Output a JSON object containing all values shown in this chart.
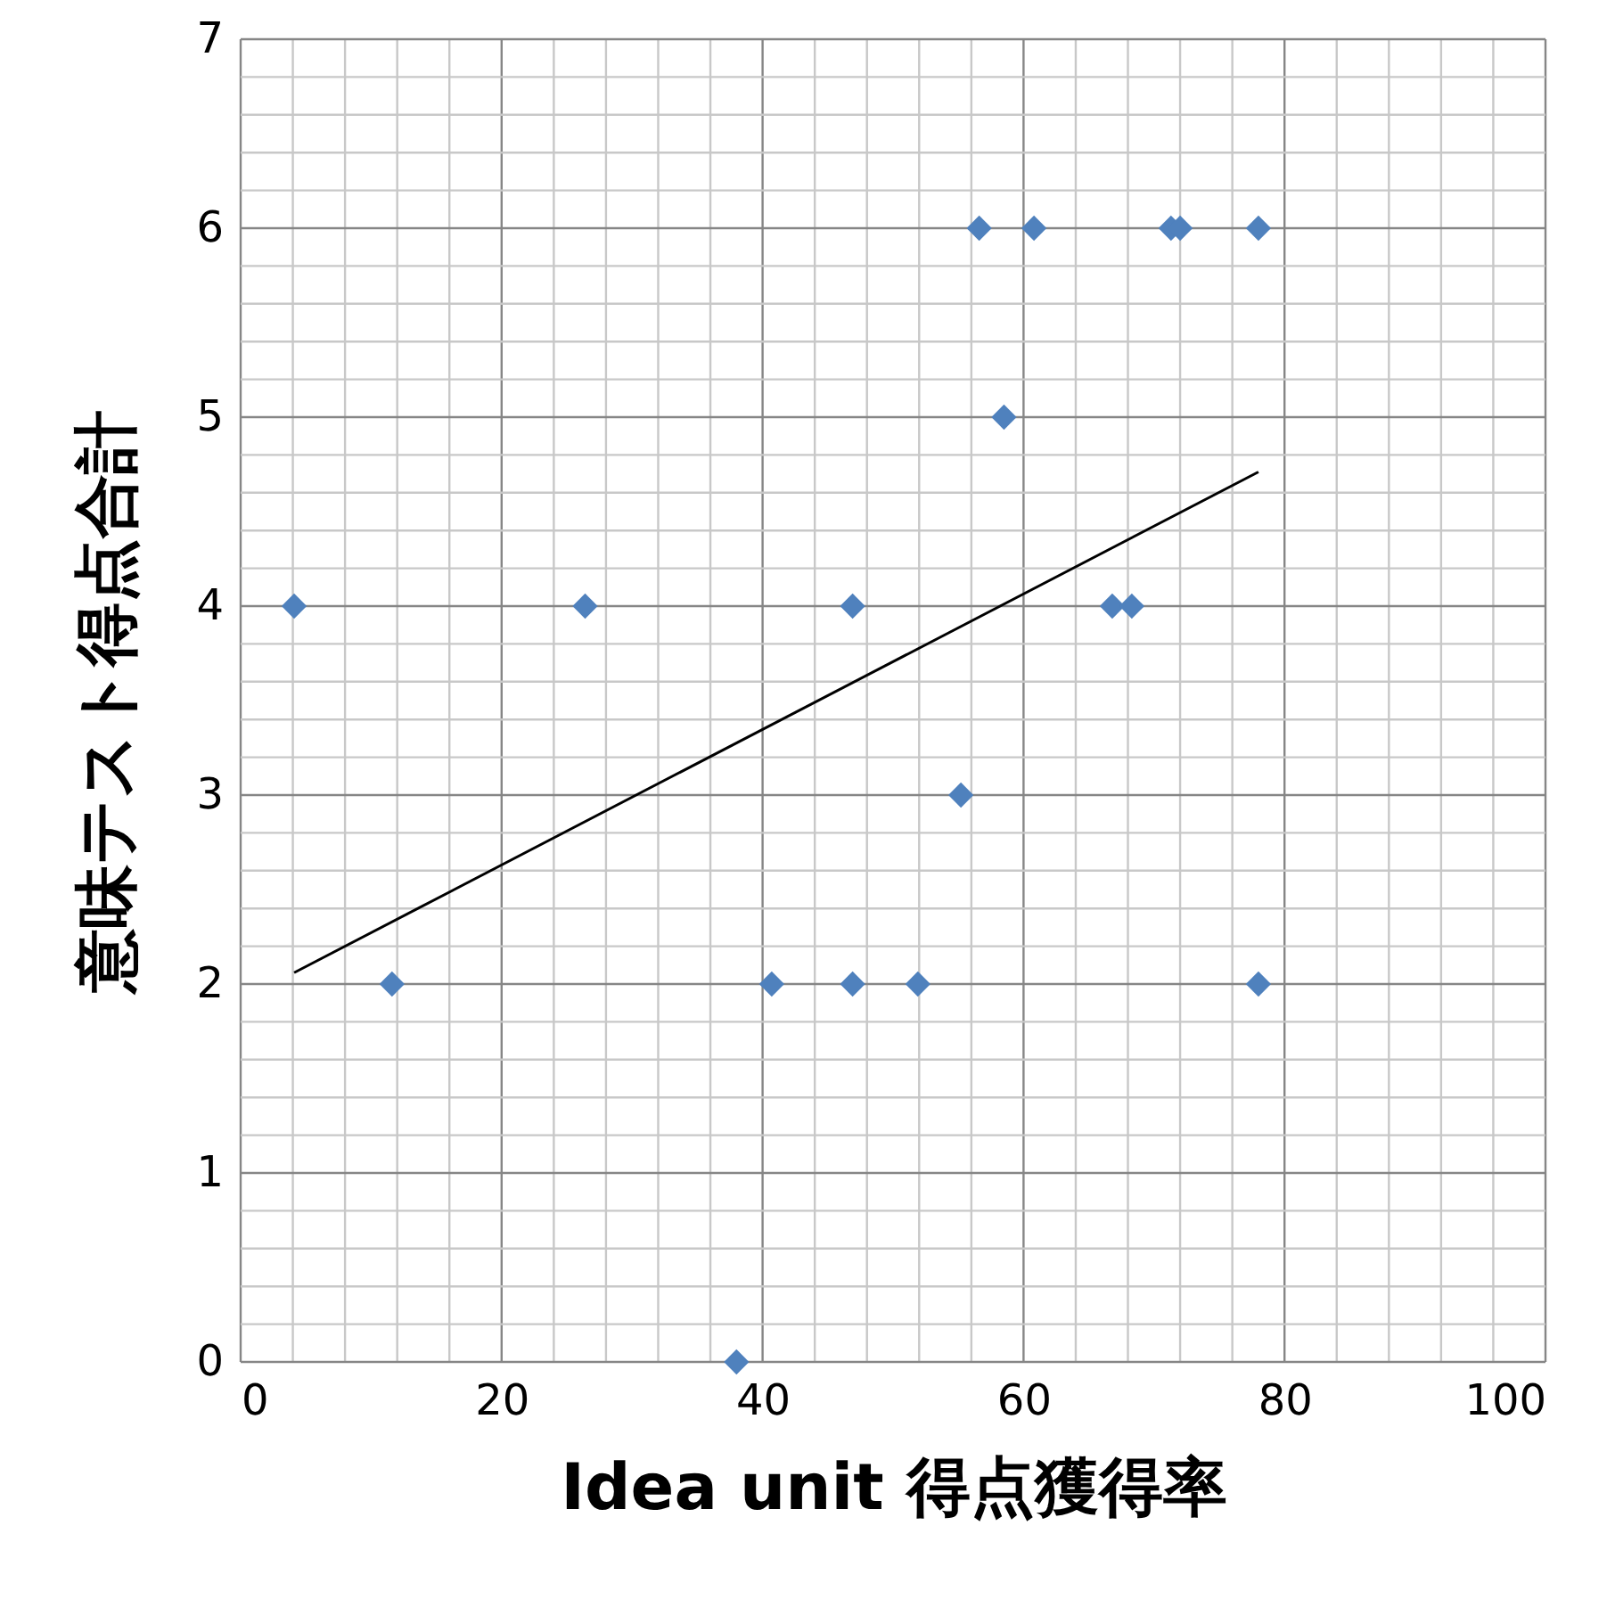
{
  "chart_data": {
    "type": "scatter",
    "xlabel": "Idea unit 得点獲得率",
    "ylabel": "意味テスト得点合計",
    "xlim": [
      0,
      100
    ],
    "ylim": [
      0,
      7
    ],
    "xticks": [
      0,
      {
        "value": 4,
        "label": null
      },
      {
        "value": 8,
        "label": null
      },
      {
        "value": 12,
        "label": null
      },
      {
        "value": 16,
        "label": null
      },
      20,
      {
        "value": 24,
        "label": null
      },
      {
        "value": 28,
        "label": null
      },
      {
        "value": 32,
        "label": null
      },
      {
        "value": 36,
        "label": null
      },
      40,
      {
        "value": 44,
        "label": null
      },
      {
        "value": 48,
        "label": null
      },
      {
        "value": 52,
        "label": null
      },
      {
        "value": 56,
        "label": null
      },
      60,
      {
        "value": 64,
        "label": null
      },
      {
        "value": 68,
        "label": null
      },
      {
        "value": 72,
        "label": null
      },
      {
        "value": 76,
        "label": null
      },
      80,
      {
        "value": 84,
        "label": null
      },
      {
        "value": 88,
        "label": null
      },
      {
        "value": 92,
        "label": null
      },
      {
        "value": 96,
        "label": null
      },
      100
    ],
    "yticks": [
      0,
      {
        "value": 0.2,
        "label": null
      },
      {
        "value": 0.4,
        "label": null
      },
      {
        "value": 0.6,
        "label": null
      },
      {
        "value": 0.8,
        "label": null
      },
      1,
      {
        "value": 1.2,
        "label": null
      },
      {
        "value": 1.4,
        "label": null
      },
      {
        "value": 1.6,
        "label": null
      },
      {
        "value": 1.8,
        "label": null
      },
      2,
      {
        "value": 2.2,
        "label": null
      },
      {
        "value": 2.4,
        "label": null
      },
      {
        "value": 2.6,
        "label": null
      },
      {
        "value": 2.8,
        "label": null
      },
      3,
      {
        "value": 3.2,
        "label": null
      },
      {
        "value": 3.4,
        "label": null
      },
      {
        "value": 3.6,
        "label": null
      },
      {
        "value": 3.8,
        "label": null
      },
      4,
      {
        "value": 4.2,
        "label": null
      },
      {
        "value": 4.4,
        "label": null
      },
      {
        "value": 4.6,
        "label": null
      },
      {
        "value": 4.8,
        "label": null
      },
      5,
      {
        "value": 5.2,
        "label": null
      },
      {
        "value": 5.4,
        "label": null
      },
      {
        "value": 5.6,
        "label": null
      },
      {
        "value": 5.8,
        "label": null
      },
      6,
      {
        "value": 6.2,
        "label": null
      },
      {
        "value": 6.4,
        "label": null
      },
      {
        "value": 6.6,
        "label": null
      },
      {
        "value": 6.8,
        "label": null
      },
      7
    ],
    "grid": true,
    "marker": "diamond",
    "series": [
      {
        "color": "#4f81bd",
        "x": [
          4.1,
          11.6,
          26.4,
          38.0,
          40.7,
          46.9,
          46.9,
          51.9,
          55.2,
          56.6,
          58.5,
          60.8,
          66.8,
          68.3,
          71.3,
          72.0,
          78.0,
          78.0
        ],
        "values": [
          4,
          2,
          4,
          0,
          2,
          4,
          2,
          2,
          3,
          6,
          5,
          6,
          4,
          4,
          6,
          6,
          6,
          2
        ]
      },
      {
        "type": "line",
        "color": "#000000",
        "line_style": "solid",
        "marker": "none",
        "x": [
          4.1,
          78.0
        ],
        "values": [
          2.06,
          4.71
        ]
      }
    ]
  }
}
